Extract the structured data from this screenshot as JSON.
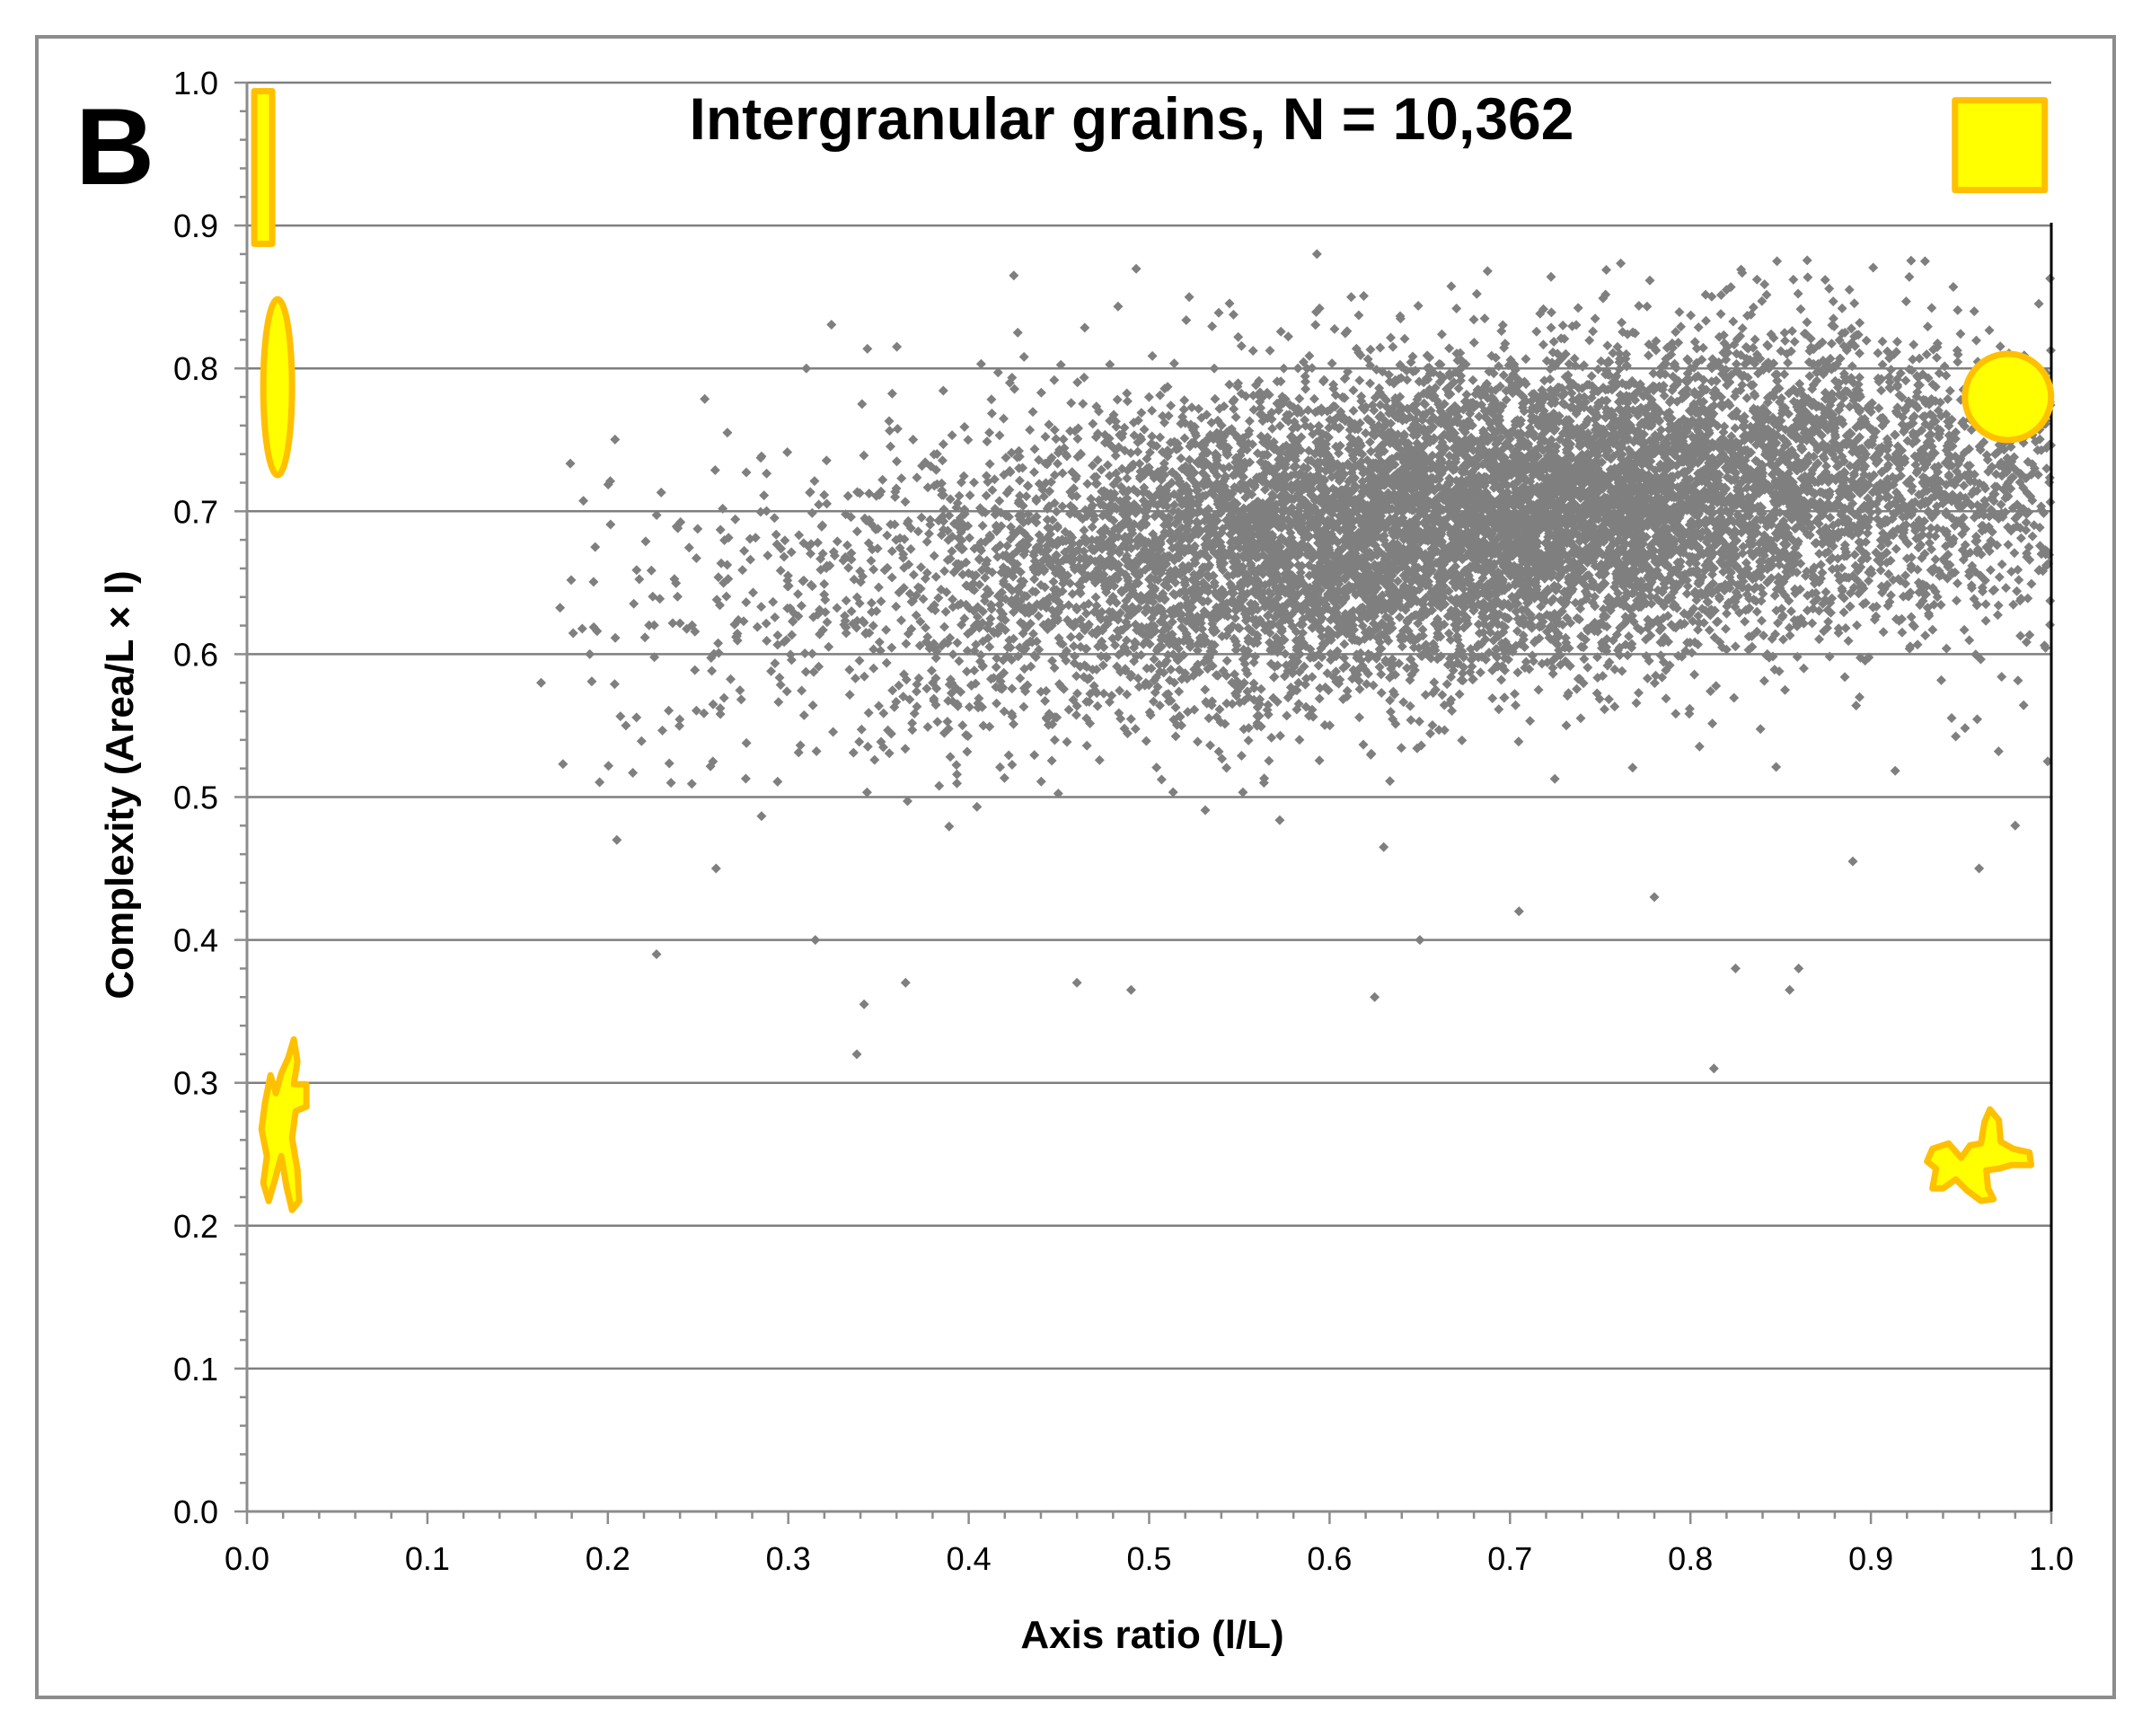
{
  "panel_label": "B",
  "chart_data": {
    "type": "scatter",
    "title": "Intergranular grains, N = 10,362",
    "xlabel": "Axis ratio (l/L)",
    "ylabel": "Complexity (Area/L × l)",
    "xlim": [
      0.0,
      1.0
    ],
    "ylim": [
      0.0,
      1.0
    ],
    "x_ticks": [
      "0.0",
      "0.1",
      "0.2",
      "0.3",
      "0.4",
      "0.5",
      "0.6",
      "0.7",
      "0.8",
      "0.9",
      "1.0"
    ],
    "y_ticks": [
      "0.0",
      "0.1",
      "0.2",
      "0.3",
      "0.4",
      "0.5",
      "0.6",
      "0.7",
      "0.8",
      "0.9",
      "1.0"
    ],
    "grid": "horizontal major gridlines",
    "n_points": 10362,
    "marker": "diamond",
    "marker_color": "#7f7f7f",
    "point_cloud_summary": {
      "x_range": [
        0.16,
        1.0
      ],
      "y_range": [
        0.31,
        0.88
      ],
      "densest_region": {
        "x": [
          0.45,
          1.0
        ],
        "y": [
          0.6,
          0.8
        ]
      },
      "centroid": {
        "x": 0.68,
        "y": 0.68
      }
    },
    "sample_points": [
      [
        0.163,
        0.58
      ],
      [
        0.19,
        0.6
      ],
      [
        0.193,
        0.675
      ],
      [
        0.205,
        0.47
      ],
      [
        0.21,
        0.55
      ],
      [
        0.227,
        0.39
      ],
      [
        0.235,
        0.51
      ],
      [
        0.26,
        0.45
      ],
      [
        0.31,
        0.8
      ],
      [
        0.315,
        0.4
      ],
      [
        0.338,
        0.32
      ],
      [
        0.342,
        0.355
      ],
      [
        0.365,
        0.37
      ],
      [
        0.425,
        0.865
      ],
      [
        0.46,
        0.37
      ],
      [
        0.49,
        0.365
      ],
      [
        0.593,
        0.88
      ],
      [
        0.612,
        0.85
      ],
      [
        0.625,
        0.36
      ],
      [
        0.65,
        0.4
      ],
      [
        0.705,
        0.42
      ],
      [
        0.78,
        0.43
      ],
      [
        0.813,
        0.31
      ],
      [
        0.82,
        0.855
      ],
      [
        0.825,
        0.38
      ],
      [
        0.848,
        0.875
      ],
      [
        0.855,
        0.365
      ],
      [
        0.86,
        0.38
      ],
      [
        0.89,
        0.455
      ],
      [
        0.93,
        0.875
      ],
      [
        0.96,
        0.45
      ],
      [
        0.98,
        0.48
      ],
      [
        0.998,
        0.525
      ]
    ],
    "legend_glyphs": [
      {
        "name": "thin-rectangle-glyph",
        "x": 0.008,
        "y": 0.945
      },
      {
        "name": "thin-ellipse-glyph",
        "x": 0.015,
        "y": 0.79
      },
      {
        "name": "elongated-irregular-glyph",
        "x": 0.018,
        "y": 0.255
      },
      {
        "name": "square-glyph",
        "x": 0.97,
        "y": 0.955
      },
      {
        "name": "circle-glyph",
        "x": 0.975,
        "y": 0.78
      },
      {
        "name": "equant-irregular-glyph",
        "x": 0.958,
        "y": 0.245
      }
    ],
    "glyph_fill": "#ffff00",
    "glyph_stroke": "#ffc000"
  }
}
